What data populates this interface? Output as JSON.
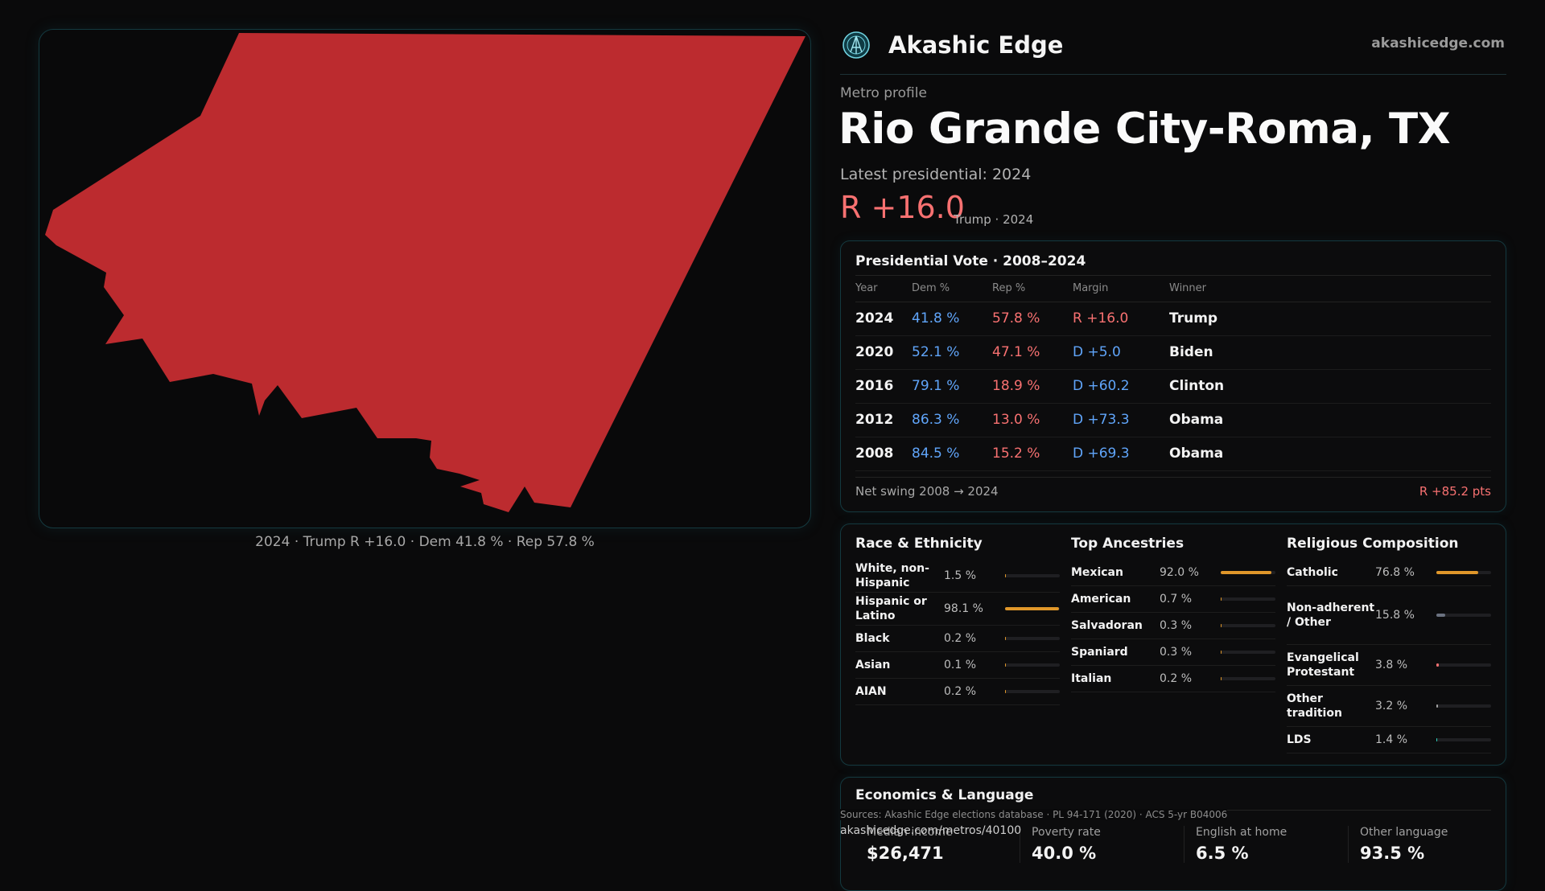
{
  "brand": {
    "name": "Akashic Edge",
    "url": "akashicedge.com"
  },
  "header": {
    "eyebrow": "Metro profile",
    "title": "Rio Grande City-Roma, TX",
    "subtitle": "Latest presidential: 2024",
    "margin": "R +16.0",
    "margin_sub": "Trump · 2024"
  },
  "map": {
    "caption": "2024 · Trump R +16.0 · Dem 41.8 % · Rep 57.8 %",
    "fill_color": "#bc2b2f"
  },
  "vote": {
    "title": "Presidential Vote · 2008–2024",
    "headers": [
      "Year",
      "Dem %",
      "Rep %",
      "Margin",
      "Winner"
    ],
    "rows": [
      {
        "year": "2024",
        "dem": "41.8 %",
        "rep": "57.8 %",
        "margin": "R +16.0",
        "party": "R",
        "winner": "Trump"
      },
      {
        "year": "2020",
        "dem": "52.1 %",
        "rep": "47.1 %",
        "margin": "D +5.0",
        "party": "D",
        "winner": "Biden"
      },
      {
        "year": "2016",
        "dem": "79.1 %",
        "rep": "18.9 %",
        "margin": "D +60.2",
        "party": "D",
        "winner": "Clinton"
      },
      {
        "year": "2012",
        "dem": "86.3 %",
        "rep": "13.0 %",
        "margin": "D +73.3",
        "party": "D",
        "winner": "Obama"
      },
      {
        "year": "2008",
        "dem": "84.5 %",
        "rep": "15.2 %",
        "margin": "D +69.3",
        "party": "D",
        "winner": "Obama"
      }
    ],
    "swing_label": "Net swing 2008 → 2024",
    "swing_value": "R +85.2 pts"
  },
  "demographics": {
    "race": {
      "title": "Race & Ethnicity",
      "color": "#e0972a",
      "items": [
        {
          "label": "White, non-Hispanic",
          "value": "1.5 %",
          "pct": 1.5
        },
        {
          "label": "Hispanic or Latino",
          "value": "98.1 %",
          "pct": 98.1
        },
        {
          "label": "Black",
          "value": "0.2 %",
          "pct": 0.2
        },
        {
          "label": "Asian",
          "value": "0.1 %",
          "pct": 0.1
        },
        {
          "label": "AIAN",
          "value": "0.2 %",
          "pct": 0.2
        }
      ]
    },
    "ancestry": {
      "title": "Top Ancestries",
      "color": "#e0972a",
      "items": [
        {
          "label": "Mexican",
          "value": "92.0 %",
          "pct": 92.0
        },
        {
          "label": "American",
          "value": "0.7 %",
          "pct": 0.7
        },
        {
          "label": "Salvadoran",
          "value": "0.3 %",
          "pct": 0.3
        },
        {
          "label": "Spaniard",
          "value": "0.3 %",
          "pct": 0.3
        },
        {
          "label": "Italian",
          "value": "0.2 %",
          "pct": 0.2
        }
      ]
    },
    "religion": {
      "title": "Religious Composition",
      "items": [
        {
          "label": "Catholic",
          "value": "76.8 %",
          "pct": 76.8,
          "color": "#e0972a"
        },
        {
          "label": "Non-adherent / Other",
          "value": "15.8 %",
          "pct": 15.8,
          "color": "#6b7280"
        },
        {
          "label": "Evangelical Protestant",
          "value": "3.8 %",
          "pct": 3.8,
          "color": "#f87171"
        },
        {
          "label": "Other tradition",
          "value": "3.2 %",
          "pct": 3.2,
          "color": "#a3a3a3"
        },
        {
          "label": "LDS",
          "value": "1.4 %",
          "pct": 1.4,
          "color": "#2dd4bf"
        }
      ]
    }
  },
  "economics": {
    "title": "Economics & Language",
    "stats": [
      {
        "label": "Median income",
        "value": "$26,471"
      },
      {
        "label": "Poverty rate",
        "value": "40.0 %"
      },
      {
        "label": "English at home",
        "value": "6.5 %"
      },
      {
        "label": "Other language",
        "value": "93.5 %"
      }
    ]
  },
  "footer": {
    "sources": "Sources: Akashic Edge elections database · PL 94-171 (2020) · ACS 5-yr B04006",
    "url": "akashicedge.com/metros/40100"
  }
}
